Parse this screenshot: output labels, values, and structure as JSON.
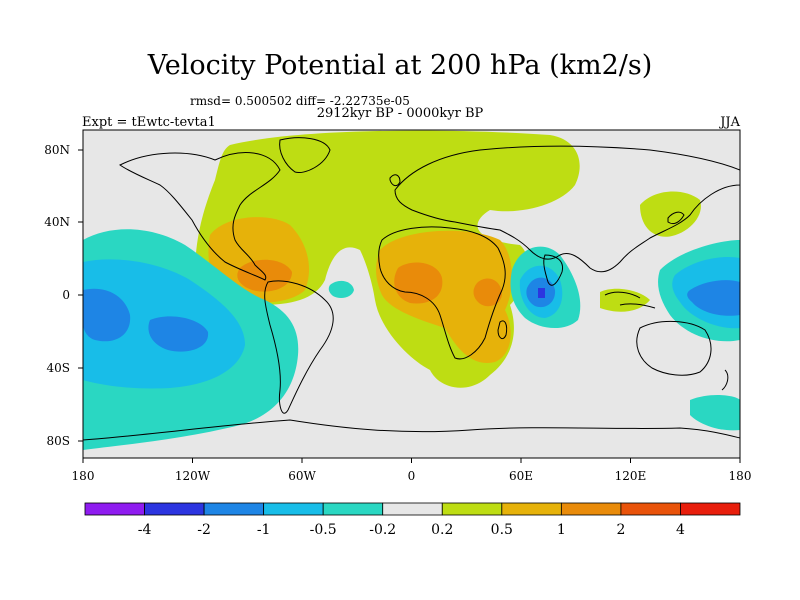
{
  "title": "Velocity Potential at 200 hPa (km2/s)",
  "stats": "rmsd= 0.500502 diff= -2.22735e-05",
  "period": "2912kyr BP - 0000kyr BP",
  "expt": "Expt = tEwtc-tevta1",
  "season": "JJA",
  "lon_ticks": [
    "180",
    "120W",
    "60W",
    "0",
    "60E",
    "120E",
    "180"
  ],
  "lat_ticks": [
    "80N",
    "40N",
    "0",
    "40S",
    "80S"
  ],
  "colorbar": {
    "colors": [
      "#8f1cf0",
      "#2c35e0",
      "#1e85e5",
      "#18bde8",
      "#2ad7c2",
      "#e7e7e7",
      "#bedd13",
      "#e6b20a",
      "#e98b0a",
      "#e9530a",
      "#e81e0c"
    ],
    "labels": [
      "-4",
      "-2",
      "-1",
      "-0.5",
      "-0.2",
      "0.2",
      "0.5",
      "1",
      "2",
      "4"
    ]
  },
  "colors": {
    "background": "#e7e7e7",
    "coast": "#000000"
  }
}
